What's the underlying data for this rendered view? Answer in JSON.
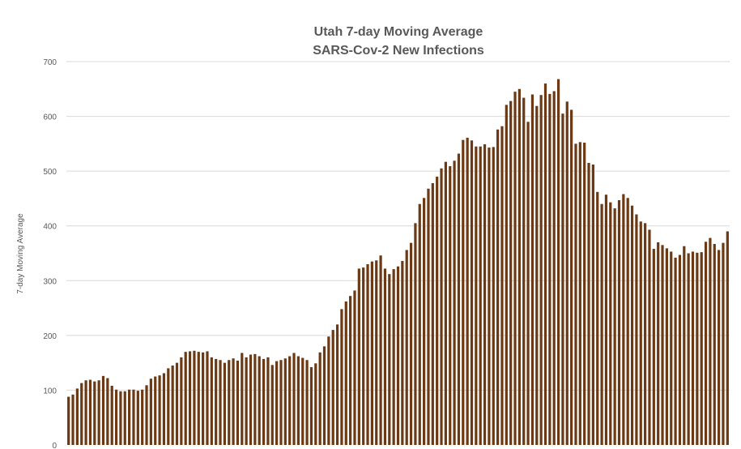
{
  "chart_data": {
    "type": "bar",
    "title": "Utah 7-day Moving Average",
    "subtitle": "SARS-Cov-2 New Infections",
    "xlabel": "",
    "ylabel": "7-day Moving Average",
    "ylim": [
      0,
      700
    ],
    "yticks": [
      "0",
      "100",
      "200",
      "300",
      "400",
      "500",
      "600",
      "700"
    ],
    "grid": true,
    "legend": "none",
    "bar_color": "#6b3a14",
    "grid_color": "#d9d9d9",
    "series": [
      {
        "values": [
          88,
          92,
          103,
          113,
          118,
          119,
          116,
          118,
          126,
          122,
          108,
          101,
          98,
          98,
          101,
          101,
          99,
          101,
          109,
          121,
          125,
          127,
          131,
          140,
          145,
          150,
          160,
          170,
          171,
          172,
          170,
          169,
          171,
          160,
          157,
          155,
          150,
          155,
          158,
          154,
          168,
          160,
          165,
          166,
          162,
          157,
          160,
          146,
          153,
          155,
          158,
          162,
          168,
          162,
          159,
          155,
          142,
          149,
          169,
          180,
          198,
          210,
          220,
          248,
          262,
          272,
          282,
          322,
          324,
          330,
          335,
          337,
          346,
          322,
          312,
          321,
          326,
          336,
          356,
          369,
          405,
          440,
          451,
          468,
          478,
          490,
          505,
          517,
          509,
          519,
          532,
          557,
          561,
          556,
          545,
          545,
          549,
          543,
          544,
          576,
          582,
          621,
          628,
          645,
          650,
          634,
          590,
          640,
          619,
          639,
          660,
          641,
          646,
          668,
          605,
          627,
          612,
          550,
          553,
          552,
          515,
          512,
          462,
          440,
          457,
          443,
          432,
          447,
          458,
          451,
          437,
          421,
          408,
          405,
          393,
          358,
          370,
          365,
          359,
          353,
          342,
          347,
          363,
          350,
          353,
          351,
          352,
          371,
          378,
          367,
          356,
          369,
          390
        ]
      }
    ]
  }
}
